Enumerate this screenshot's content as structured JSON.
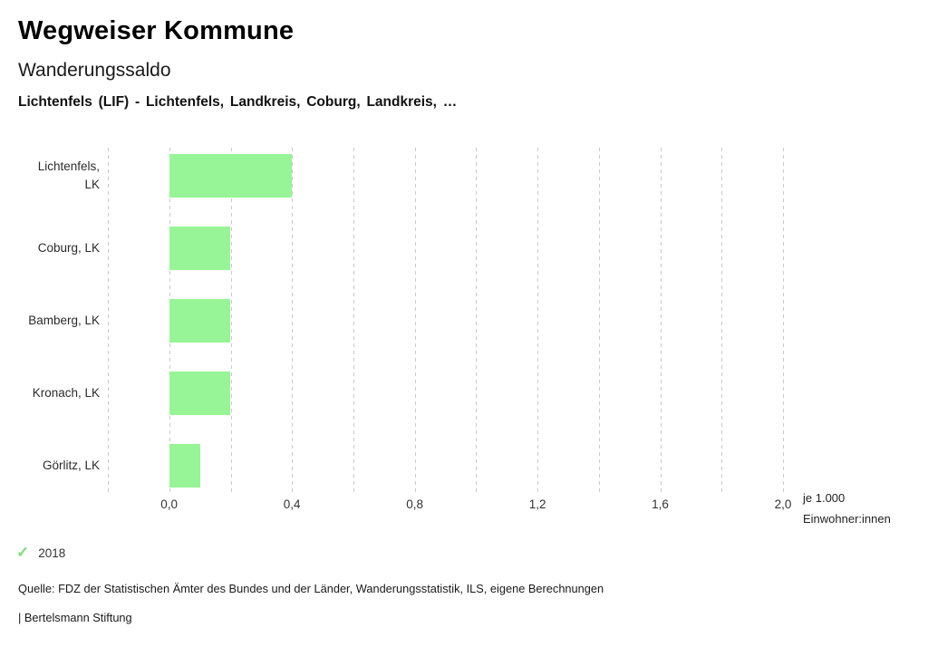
{
  "header": {
    "title": "Wegweiser Kommune",
    "subtitle": "Wanderungssaldo",
    "context": "Lichtenfels (LIF) - Lichtenfels, Landkreis, Coburg, Landkreis, …"
  },
  "chart_data": {
    "type": "bar",
    "orientation": "horizontal",
    "title": "Wanderungssaldo",
    "categories": [
      "Lichtenfels, LK",
      "Coburg, LK",
      "Bamberg, LK",
      "Kronach, LK",
      "Görlitz, LK"
    ],
    "category_display": [
      "Lichtenfels,\nLK",
      "Coburg, LK",
      "Bamberg, LK",
      "Kronach, LK",
      "Görlitz, LK"
    ],
    "values": [
      0.4,
      0.2,
      0.2,
      0.2,
      0.1
    ],
    "series_name": "2018",
    "xlabel": "je 1.000 Einwohner:innen",
    "xlabel_lines": [
      "je 1.000",
      "Einwohner:innen"
    ],
    "xlim": [
      -0.2,
      2.0
    ],
    "xticks": [
      0.0,
      0.4,
      0.8,
      1.2,
      1.6,
      2.0
    ],
    "xtick_labels": [
      "0,0",
      "0,4",
      "0,8",
      "1,2",
      "1,6",
      "2,0"
    ],
    "grid_step": 0.2,
    "grid": true,
    "legend_position": "bottom-left"
  },
  "legend": {
    "check_glyph": "✓",
    "year": "2018"
  },
  "footer": {
    "source": "Quelle: FDZ der Statistischen Ämter des Bundes und der Länder, Wanderungsstatistik, ILS, eigene Berechnungen",
    "attribution": "| Bertelsmann Stiftung"
  },
  "colors": {
    "bar": "#97f597",
    "check": "#7edc7e",
    "gridline": "#c9c9c9"
  }
}
